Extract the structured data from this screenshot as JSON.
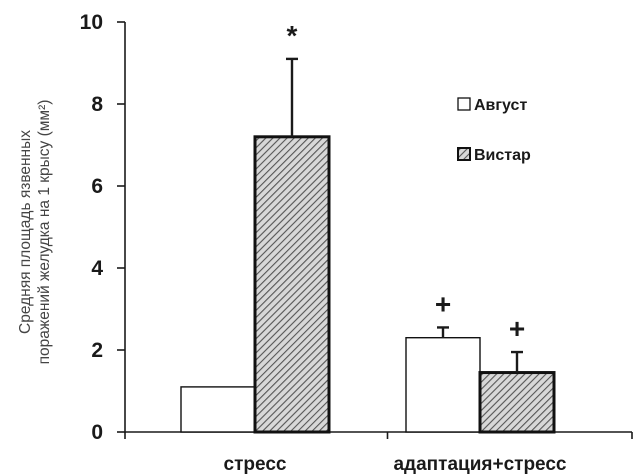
{
  "chart_data": {
    "type": "bar",
    "ylabel_lines": [
      "Средняя площадь язвенных",
      "поражений желудка на 1 крысу (мм²)"
    ],
    "xlabel": "",
    "ylim": [
      0,
      10
    ],
    "yticks": [
      0,
      2,
      4,
      6,
      8,
      10
    ],
    "categories": [
      "стресс",
      "адаптация+стресс"
    ],
    "legend_position": "right",
    "grid": false,
    "series": [
      {
        "name": "Август",
        "fill": "white",
        "values": [
          1.1,
          2.3
        ],
        "errors": [
          0,
          0.25
        ],
        "annotations": [
          "",
          "+"
        ]
      },
      {
        "name": "Вистар",
        "fill": "hatched",
        "values": [
          7.2,
          1.45
        ],
        "errors": [
          1.9,
          0.5
        ],
        "annotations": [
          "*",
          "+"
        ]
      }
    ],
    "colors": {
      "axis": "#1a1a1a",
      "hatch": "#555555",
      "hatch_bg": "#d8d8d8",
      "bar_outline": "#111111"
    }
  }
}
